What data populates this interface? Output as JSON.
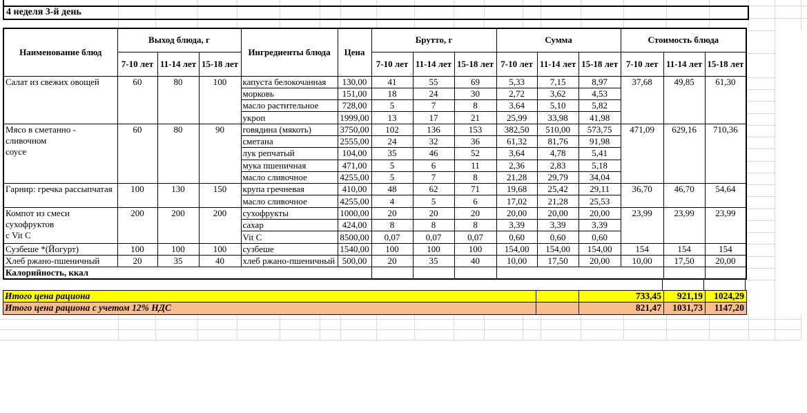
{
  "title": "4 неделя 3-й день",
  "colors": {
    "total_row_bg": "#FFFF00",
    "vat_row_bg": "#F9BE8E",
    "grid_line": "#d9d9d9",
    "table_border": "#000000"
  },
  "table": {
    "headers": {
      "dish": "Наименование блюд",
      "output_group": "Выход блюда, г",
      "ingredients": "Ингредиенты блюда",
      "price": "Цена",
      "gross_group": "Брутто, г",
      "sum_group": "Сумма",
      "cost_group": "Стоимость блюда",
      "age_cols": [
        "7-10 лет",
        "11-14 лет",
        "15-18 лет"
      ]
    },
    "dishes": [
      {
        "name": "Салат из свежих овощей",
        "output": [
          "60",
          "80",
          "100"
        ],
        "cost": [
          "37,68",
          "49,85",
          "61,30"
        ],
        "ingredients": [
          {
            "name": "капуста белокочанная",
            "price": "130,00",
            "gross": [
              "41",
              "55",
              "69"
            ],
            "sum": [
              "5,33",
              "7,15",
              "8,97"
            ]
          },
          {
            "name": "морковь",
            "price": "151,00",
            "gross": [
              "18",
              "24",
              "30"
            ],
            "sum": [
              "2,72",
              "3,62",
              "4,53"
            ]
          },
          {
            "name": "масло растительное",
            "price": "728,00",
            "gross": [
              "5",
              "7",
              "8"
            ],
            "sum": [
              "3,64",
              "5,10",
              "5,82"
            ]
          },
          {
            "name": "укроп",
            "price": "1999,00",
            "gross": [
              "13",
              "17",
              "21"
            ],
            "sum": [
              "25,99",
              "33,98",
              "41,98"
            ]
          }
        ]
      },
      {
        "name": "Мясо в сметанно - сливочном\nсоусе",
        "output": [
          "60",
          "80",
          "90"
        ],
        "cost": [
          "471,09",
          "629,16",
          "710,36"
        ],
        "ingredients": [
          {
            "name": "говядина (мякоть)",
            "price": "3750,00",
            "gross": [
              "102",
              "136",
              "153"
            ],
            "gross_lg": [
              false,
              true,
              true
            ],
            "sum": [
              "382,50",
              "510,00",
              "573,75"
            ]
          },
          {
            "name": "сметана",
            "price": "2555,00",
            "gross": [
              "24",
              "32",
              "36"
            ],
            "sum": [
              "61,32",
              "81,76",
              "91,98"
            ]
          },
          {
            "name": "лук репчатый",
            "price": "104,00",
            "gross": [
              "35",
              "46",
              "52"
            ],
            "sum": [
              "3,64",
              "4,78",
              "5,41"
            ]
          },
          {
            "name": "мука пшеничная",
            "price": "471,00",
            "gross": [
              "5",
              "6",
              "11"
            ],
            "sum": [
              "2,36",
              "2,83",
              "5,18"
            ]
          },
          {
            "name": "масло сливочное",
            "price": "4255,00",
            "gross": [
              "5",
              "7",
              "8"
            ],
            "sum": [
              "21,28",
              "29,79",
              "34,04"
            ]
          }
        ]
      },
      {
        "name": "Гарнир: гречка рассыпчатая",
        "output": [
          "100",
          "130",
          "150"
        ],
        "cost": [
          "36,70",
          "46,70",
          "54,64"
        ],
        "cost_lg": [
          false,
          true,
          true
        ],
        "ingredients": [
          {
            "name": "крупа гречневая",
            "price": "410,00",
            "gross": [
              "48",
              "62",
              "71"
            ],
            "sum": [
              "19,68",
              "25,42",
              "29,11"
            ]
          },
          {
            "name": "масло сливочное",
            "price": "4255,00",
            "gross": [
              "4",
              "5",
              "6"
            ],
            "sum": [
              "17,02",
              "21,28",
              "25,53"
            ]
          }
        ]
      },
      {
        "name": "Компот из смеси сухофруктов\nс Vit C",
        "output": [
          "200",
          "200",
          "200"
        ],
        "cost": [
          "23,99",
          "23,99",
          "23,99"
        ],
        "ingredients": [
          {
            "name": "сухофрукты",
            "price": "1000,00",
            "gross": [
              "20",
              "20",
              "20"
            ],
            "sum": [
              "20,00",
              "20,00",
              "20,00"
            ]
          },
          {
            "name": "сахар",
            "price": "424,00",
            "gross": [
              "8",
              "8",
              "8"
            ],
            "sum": [
              "3,39",
              "3,39",
              "3,39"
            ]
          },
          {
            "name": "Vit C",
            "price": "8500,00",
            "gross": [
              "0,07",
              "0,07",
              "0,07"
            ],
            "sum": [
              "0,60",
              "0,60",
              "0,60"
            ]
          }
        ]
      },
      {
        "name": "Сузбеше *(Йогурт)",
        "output": [
          "100",
          "100",
          "100"
        ],
        "cost": [
          "154",
          "154",
          "154"
        ],
        "ingredients": [
          {
            "name": "сузбеше",
            "price": "1540,00",
            "gross": [
              "100",
              "100",
              "100"
            ],
            "sum": [
              "154,00",
              "154,00",
              "154,00"
            ]
          }
        ]
      },
      {
        "name": "Хлеб ржано-пшеничный",
        "output": [
          "20",
          "35",
          "40"
        ],
        "cost": [
          "10,00",
          "17,50",
          "20,00"
        ],
        "cost_lg": [
          false,
          true,
          true
        ],
        "ingredients": [
          {
            "name": "хлеб ржано-пшеничный",
            "price": "500,00",
            "gross": [
              "20",
              "35",
              "40"
            ],
            "sum": [
              "10,00",
              "17,50",
              "20,00"
            ]
          }
        ]
      }
    ],
    "calories_label": "Калорийность, ккал",
    "totals": [
      {
        "label": "Итого цена рациона",
        "values": [
          "733,45",
          "921,19",
          "1024,29"
        ],
        "bg": "#FFFF00"
      },
      {
        "label": "Итого цена рациона с учетом 12% НДС",
        "values": [
          "821,47",
          "1031,73",
          "1147,20"
        ],
        "bg": "#F9BE8E"
      }
    ]
  }
}
